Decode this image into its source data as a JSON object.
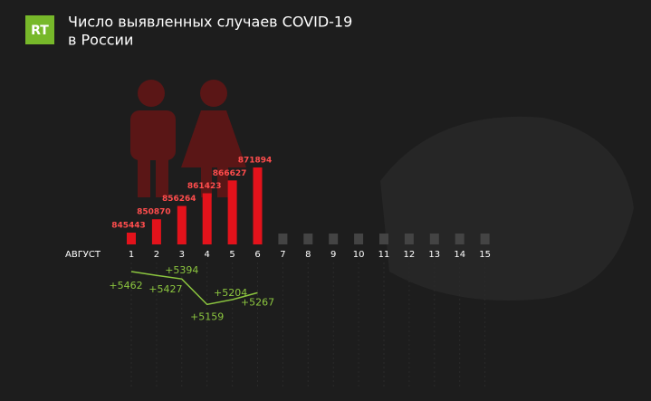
{
  "logo": "RT",
  "chart_data": {
    "type": "bar",
    "title": "Число выявленных случаев COVID-19",
    "subtitle": "в России",
    "x_label": "АВГУСТ",
    "categories": [
      "1",
      "2",
      "3",
      "4",
      "5",
      "6",
      "7",
      "8",
      "9",
      "10",
      "11",
      "12",
      "13",
      "14",
      "15"
    ],
    "values": [
      845443,
      850870,
      856264,
      861423,
      866627,
      871894,
      null,
      null,
      null,
      null,
      null,
      null,
      null,
      null,
      null
    ],
    "color": "#e3121b",
    "increments": {
      "values": [
        5462,
        5427,
        5394,
        5159,
        5204,
        5267
      ],
      "value_labels": [
        "+5462",
        "+5427",
        "+5394",
        "+5159",
        "+5204",
        "+5267"
      ],
      "color": "#8cc63f"
    }
  }
}
